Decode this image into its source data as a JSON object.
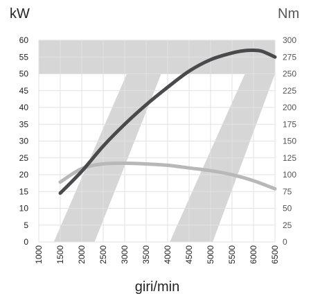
{
  "chart_data": {
    "type": "line",
    "left_unit": "kW",
    "right_unit": "Nm",
    "xlabel": "giri/min",
    "xlim": [
      1000,
      6500
    ],
    "ylim_left": [
      0,
      60
    ],
    "ylim_right": [
      0,
      300
    ],
    "x_ticks": [
      "1000",
      "1500",
      "2000",
      "2500",
      "3000",
      "3500",
      "4000",
      "4500",
      "5000",
      "5500",
      "6000",
      "6500"
    ],
    "y_ticks_left": [
      "0",
      "5",
      "10",
      "15",
      "20",
      "25",
      "30",
      "35",
      "40",
      "45",
      "50",
      "55",
      "60"
    ],
    "y_ticks_right": [
      "0",
      "25",
      "50",
      "75",
      "100",
      "125",
      "150",
      "175",
      "200",
      "225",
      "250",
      "275",
      "300"
    ],
    "grid": true,
    "colors": {
      "power": "#4a4a4c",
      "torque": "#b8b8b8",
      "band": "#d6d6d6",
      "grid": "#e2e2e2",
      "right_axis_text": "#555555"
    },
    "bands": {
      "top_band_kw": [
        50,
        60
      ],
      "diagonals": [
        {
          "bottom": [
            1350,
            2300
          ],
          "top": [
            3050,
            3850
          ]
        },
        {
          "bottom": [
            4050,
            5050
          ],
          "top": [
            5800,
            6500
          ]
        }
      ]
    },
    "series": [
      {
        "key": "power",
        "axis": "left",
        "x": [
          1500,
          2000,
          2500,
          3000,
          3500,
          4000,
          4500,
          5000,
          5500,
          5800,
          6000,
          6200,
          6500
        ],
        "values": [
          14.5,
          21,
          28.5,
          35,
          40.8,
          46,
          50.8,
          54.2,
          56.2,
          56.9,
          57,
          56.7,
          55
        ]
      },
      {
        "key": "torque",
        "axis": "right",
        "x": [
          1500,
          2000,
          2500,
          3000,
          3500,
          4000,
          4500,
          5000,
          5500,
          6000,
          6500
        ],
        "values": [
          89,
          109,
          116,
          117,
          116,
          114,
          110,
          106,
          100,
          91,
          79
        ]
      }
    ]
  }
}
